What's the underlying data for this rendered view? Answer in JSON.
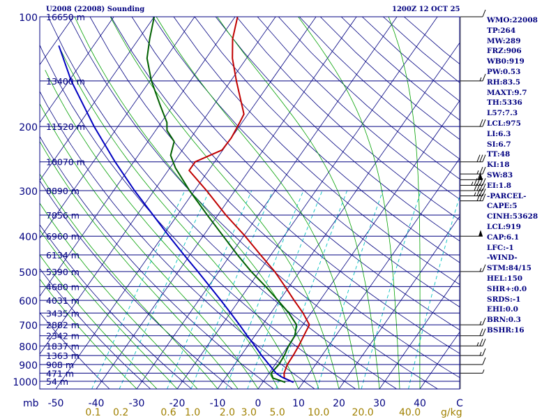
{
  "header": {
    "title": "U2008 (22008) Sounding",
    "time": "1200Z 12 OCT 25"
  },
  "side_panel": [
    "WMO:22008",
    "TP:264",
    "MW:289",
    "FRZ:906",
    "WB0:919",
    "PW:0.53",
    "RH:83.5",
    "MAXT:9.7",
    "TH:5336",
    "L57:7.3",
    "LCL:975",
    "LI:6.3",
    "SI:6.7",
    "TT:48",
    "KI:18",
    "SW:83",
    "EI:1.8",
    "-PARCEL-",
    "CAPE:5",
    "CINH:53628",
    "LCL:919",
    "CAP:6.1",
    "LFC:-1",
    "-WIND-",
    "STM:84/15",
    "HEL:150",
    "SHR+:0.0",
    "SRDS:-1",
    "EHI:0.0",
    "BRN:0.3",
    "BSHR:16"
  ],
  "colors": {
    "frame": "#000080",
    "isobar": "#000080",
    "isotherm": "#000080",
    "dry_adiabat": "#000080",
    "moist_adiabat": "#00a000",
    "mixing_ratio": "#00c0c0",
    "temperature": "#c00000",
    "dewpoint": "#006000",
    "parcel": "#0000c0",
    "label_mixing": "#a08000",
    "wind": "#000000"
  },
  "chart_data": {
    "type": "line",
    "chart": "skew-T log-P",
    "xlabel": "C",
    "ylabel": "mb",
    "mixing_ratio_unit": "g/kg",
    "pressure_ticks": [
      100,
      200,
      300,
      400,
      500,
      600,
      700,
      800,
      900,
      1000
    ],
    "temperature_ticks": [
      -50,
      -40,
      -30,
      -20,
      -10,
      0,
      10,
      20,
      30,
      40
    ],
    "mixing_ratio_ticks": [
      0.1,
      0.2,
      0.6,
      1.0,
      2.0,
      3.0,
      5.0,
      10.0,
      20.0,
      40.0
    ],
    "height_levels": [
      {
        "p": 100,
        "label": "16650 m"
      },
      {
        "p": 150,
        "label": "13400 m"
      },
      {
        "p": 200,
        "label": "11520 m"
      },
      {
        "p": 250,
        "label": "10070 m"
      },
      {
        "p": 300,
        "label": "8890 m"
      },
      {
        "p": 350,
        "label": "7856 m"
      },
      {
        "p": 400,
        "label": "6960 m"
      },
      {
        "p": 450,
        "label": "6134 m"
      },
      {
        "p": 500,
        "label": "5390 m"
      },
      {
        "p": 550,
        "label": "4680 m"
      },
      {
        "p": 600,
        "label": "4031 m"
      },
      {
        "p": 650,
        "label": "3435 m"
      },
      {
        "p": 700,
        "label": "2882 m"
      },
      {
        "p": 750,
        "label": "2342 m"
      },
      {
        "p": 800,
        "label": "1837 m"
      },
      {
        "p": 850,
        "label": "1363 m"
      },
      {
        "p": 900,
        "label": "908 m"
      },
      {
        "p": 950,
        "label": "471 m"
      },
      {
        "p": 1000,
        "label": "54 m"
      }
    ],
    "series": [
      {
        "key": "temperature",
        "points": [
          [
            1007,
            7.6
          ],
          [
            980,
            4.6
          ],
          [
            950,
            3.7
          ],
          [
            900,
            3.0
          ],
          [
            850,
            2.9
          ],
          [
            800,
            2.6
          ],
          [
            750,
            2.1
          ],
          [
            700,
            1.6
          ],
          [
            650,
            -2.0
          ],
          [
            600,
            -6.4
          ],
          [
            550,
            -11.0
          ],
          [
            500,
            -16.2
          ],
          [
            450,
            -22.6
          ],
          [
            400,
            -29.6
          ],
          [
            350,
            -38.0
          ],
          [
            300,
            -47.0
          ],
          [
            264,
            -54.8
          ],
          [
            250,
            -54.8
          ],
          [
            232,
            -50.2
          ],
          [
            215,
            -50.0
          ],
          [
            195,
            -50.6
          ],
          [
            185,
            -51.0
          ],
          [
            175,
            -53.0
          ],
          [
            150,
            -58.6
          ],
          [
            130,
            -63.5
          ],
          [
            115,
            -66.8
          ],
          [
            100,
            -69.4
          ]
        ]
      },
      {
        "key": "dewpoint",
        "points": [
          [
            1007,
            5.6
          ],
          [
            980,
            1.8
          ],
          [
            950,
            0.5
          ],
          [
            900,
            0.9
          ],
          [
            850,
            0.7
          ],
          [
            800,
            0.1
          ],
          [
            750,
            -0.1
          ],
          [
            700,
            -1.6
          ],
          [
            650,
            -5.5
          ],
          [
            600,
            -10.4
          ],
          [
            550,
            -15.8
          ],
          [
            500,
            -22.0
          ],
          [
            450,
            -28.3
          ],
          [
            400,
            -35.0
          ],
          [
            350,
            -42.6
          ],
          [
            300,
            -51.2
          ],
          [
            260,
            -58.6
          ],
          [
            240,
            -62.0
          ],
          [
            220,
            -63.5
          ],
          [
            205,
            -67.2
          ],
          [
            195,
            -68.6
          ],
          [
            175,
            -73.2
          ],
          [
            150,
            -79.6
          ],
          [
            130,
            -84.6
          ],
          [
            115,
            -87.3
          ],
          [
            100,
            -90.0
          ]
        ]
      },
      {
        "key": "parcel",
        "points": [
          [
            1007,
            7.6
          ],
          [
            975,
            3.9
          ],
          [
            950,
            1.7
          ],
          [
            900,
            -1.5
          ],
          [
            850,
            -4.9
          ],
          [
            800,
            -8.2
          ],
          [
            750,
            -11.9
          ],
          [
            700,
            -15.7
          ],
          [
            650,
            -19.9
          ],
          [
            600,
            -24.5
          ],
          [
            550,
            -29.6
          ],
          [
            500,
            -35.2
          ],
          [
            450,
            -41.5
          ],
          [
            400,
            -48.4
          ],
          [
            350,
            -56.0
          ],
          [
            300,
            -64.8
          ],
          [
            250,
            -74.6
          ],
          [
            200,
            -85.9
          ],
          [
            150,
            -99.4
          ],
          [
            120,
            -108.6
          ]
        ]
      }
    ],
    "wind_barbs": [
      {
        "p": 100,
        "speed": 10
      },
      {
        "p": 150,
        "speed": 15
      },
      {
        "p": 200,
        "speed": 20
      },
      {
        "p": 250,
        "speed": 30
      },
      {
        "p": 270,
        "speed": 25
      },
      {
        "p": 280,
        "speed": 60
      },
      {
        "p": 290,
        "speed": 45
      },
      {
        "p": 300,
        "speed": 40
      },
      {
        "p": 310,
        "speed": 35
      },
      {
        "p": 320,
        "speed": 30
      },
      {
        "p": 400,
        "speed": 50
      },
      {
        "p": 500,
        "speed": 15
      },
      {
        "p": 700,
        "speed": 15
      },
      {
        "p": 750,
        "speed": 20
      },
      {
        "p": 800,
        "speed": 25
      },
      {
        "p": 850,
        "speed": 15
      },
      {
        "p": 900,
        "speed": 10
      },
      {
        "p": 950,
        "speed": 5
      }
    ]
  }
}
